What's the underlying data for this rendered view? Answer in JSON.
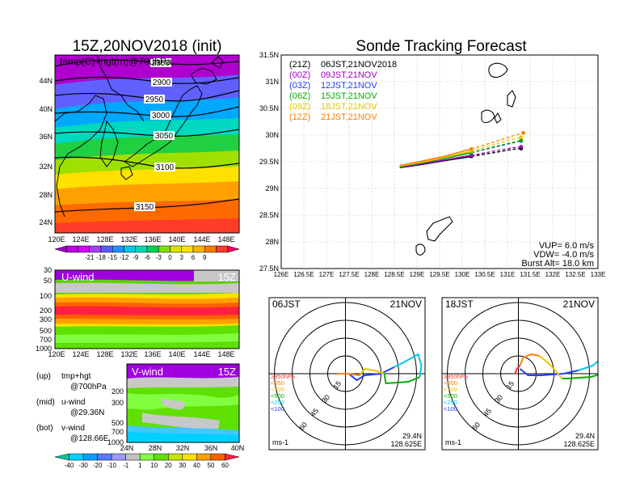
{
  "left_title": "15Z,20NOV2018 (init)",
  "map": {
    "overlay_label": "temp(C)+hgt(m)@700hPa",
    "lat_ticks": [
      "44N",
      "40N",
      "36N",
      "32N",
      "28N",
      "24N"
    ],
    "lon_ticks": [
      "120E",
      "124E",
      "128E",
      "132E",
      "136E",
      "140E",
      "144E",
      "148E"
    ],
    "contour_labels": [
      "2850",
      "2900",
      "2950",
      "3000",
      "3050",
      "3100",
      "3150"
    ]
  },
  "temp_colorbar": {
    "labels": [
      "-21",
      "-18",
      "-15",
      "-12",
      "-9",
      "-6",
      "-3",
      "0",
      "3",
      "6",
      "9"
    ],
    "colors": [
      "#9a00c8",
      "#c000e0",
      "#d800ff",
      "#a040ff",
      "#5a5aff",
      "#2090ff",
      "#00c8e8",
      "#00dcb0",
      "#00d250",
      "#80e000",
      "#d8e400",
      "#ffe000",
      "#ffb400",
      "#ff7a00",
      "#ff3c28",
      "#f00064"
    ]
  },
  "uwind_panel": {
    "title": "U-wind",
    "time_label": "15Z",
    "y_ticks": [
      "30",
      "50",
      "100",
      "200",
      "300",
      "500",
      "700",
      "1000"
    ],
    "x_ticks": [
      "120E",
      "124E",
      "128E",
      "132E",
      "136E",
      "140E",
      "144E",
      "148E"
    ]
  },
  "vwind_panel": {
    "title": "V-wind",
    "time_label": "15Z",
    "y_ticks": [
      "200",
      "300",
      "500",
      "700",
      "1000"
    ],
    "x_ticks": [
      "24N",
      "28N",
      "32N",
      "36N",
      "40N"
    ]
  },
  "legend_notes": [
    {
      "key": "(up)",
      "line1": "tmp+hgt",
      "line2": "@700hPa"
    },
    {
      "key": "(mid)",
      "line1": "u-wind",
      "line2": "@29.36N"
    },
    {
      "key": "(bot)",
      "line1": "v-wind",
      "line2": "@128.66E"
    }
  ],
  "wind_colorbar": {
    "labels": [
      "-40",
      "-30",
      "-20",
      "-10",
      "-1",
      "1",
      "10",
      "20",
      "30",
      "40",
      "50",
      "60"
    ],
    "colors": [
      "#00c8a0",
      "#00d0ff",
      "#00a0ff",
      "#5a78ff",
      "#9a9aff",
      "#c0c0c0",
      "#80ff40",
      "#60e000",
      "#c8e600",
      "#ffe000",
      "#ffa000",
      "#ff6000",
      "#ff2040"
    ]
  },
  "track": {
    "title": "Sonde Tracking Forecast",
    "legend": [
      {
        "code": "(21Z)",
        "time": "06JST,21NOV2018",
        "color": "#000000"
      },
      {
        "code": "(00Z)",
        "time": "09JST,21NOV",
        "color": "#a000c0"
      },
      {
        "code": "(03Z)",
        "time": "12JST,21NOV",
        "color": "#2040ff"
      },
      {
        "code": "(06Z)",
        "time": "15JST,21NOV",
        "color": "#00b000"
      },
      {
        "code": "(09Z)",
        "time": "18JST,21NOV",
        "color": "#e8c800"
      },
      {
        "code": "(12Z)",
        "time": "21JST,21NOV",
        "color": "#ff8000"
      }
    ],
    "lat_ticks": [
      "31.5N",
      "31N",
      "30.5N",
      "30N",
      "29.5N",
      "29N",
      "28.5N",
      "28N",
      "27.5N"
    ],
    "lon_ticks": [
      "126E",
      "126.5E",
      "127E",
      "127.5E",
      "128E",
      "128.5E",
      "129E",
      "129.5E",
      "130E",
      "130.5E",
      "131E",
      "131.5E",
      "132E",
      "132.5E",
      "133E"
    ],
    "vup": "VUP= 6.0 m/s",
    "vdw": "VDW= -4.0 m/s",
    "burst": "Burst Alt= 18.0 km"
  },
  "hodo_left": {
    "time": "06JST",
    "date": "21NOV",
    "lat": "29.4N",
    "lon": "128.625E",
    "unit": "ms-1",
    "ring_labels": [
      "15",
      "30",
      "45",
      "60"
    ],
    "pressure_legend": [
      "≥850hPa",
      "<850",
      "<700",
      "<500",
      "<250",
      "<100"
    ]
  },
  "hodo_right": {
    "time": "18JST",
    "date": "21NOV",
    "lat": "29.4N",
    "lon": "128.625E",
    "unit": "ms-1",
    "ring_labels": [
      "15",
      "30",
      "45",
      "60"
    ],
    "pressure_legend": [
      "≥850hPa",
      "<850",
      "<700",
      "<500",
      "<250",
      "<100"
    ]
  },
  "chart_data": {
    "type": "line",
    "title": "Sonde Tracking Forecast",
    "xlabel": "",
    "ylabel": "",
    "xlim": [
      126,
      133
    ],
    "ylim": [
      27.5,
      31.5
    ],
    "series": [
      {
        "name": "(21Z) 06JST,21NOV2018",
        "color": "#000000",
        "x": [
          128.62,
          129.1,
          129.6,
          130.2,
          130.7,
          131.1,
          131.3
        ],
        "y": [
          29.39,
          29.45,
          29.52,
          29.6,
          29.67,
          29.73,
          29.75
        ]
      },
      {
        "name": "(00Z) 09JST,21NOV",
        "color": "#a000c0",
        "x": [
          128.62,
          129.1,
          129.6,
          130.2,
          130.7,
          131.1,
          131.3
        ],
        "y": [
          29.4,
          29.46,
          29.53,
          29.62,
          29.7,
          29.76,
          29.78
        ]
      },
      {
        "name": "(03Z) 12JST,21NOV",
        "color": "#2040ff",
        "x": [
          128.62,
          129.1,
          129.6,
          130.2,
          130.7,
          131.1,
          131.3
        ],
        "y": [
          29.41,
          29.48,
          29.56,
          29.67,
          29.77,
          29.85,
          29.89
        ]
      },
      {
        "name": "(06Z) 15JST,21NOV",
        "color": "#00b000",
        "x": [
          128.62,
          129.1,
          129.6,
          130.2,
          130.7,
          131.1,
          131.3
        ],
        "y": [
          29.41,
          29.48,
          29.56,
          29.67,
          29.78,
          29.86,
          29.9
        ]
      },
      {
        "name": "(09Z) 18JST,21NOV",
        "color": "#e8c800",
        "x": [
          128.62,
          129.1,
          129.6,
          130.2,
          130.7,
          131.1,
          131.3
        ],
        "y": [
          29.42,
          29.49,
          29.58,
          29.7,
          29.82,
          29.92,
          29.96
        ]
      },
      {
        "name": "(12Z) 21JST,21NOV",
        "color": "#ff8000",
        "x": [
          128.62,
          129.1,
          129.6,
          130.2,
          130.7,
          131.1,
          131.35
        ],
        "y": [
          29.43,
          29.51,
          29.6,
          29.74,
          29.87,
          29.98,
          30.04
        ]
      }
    ]
  }
}
